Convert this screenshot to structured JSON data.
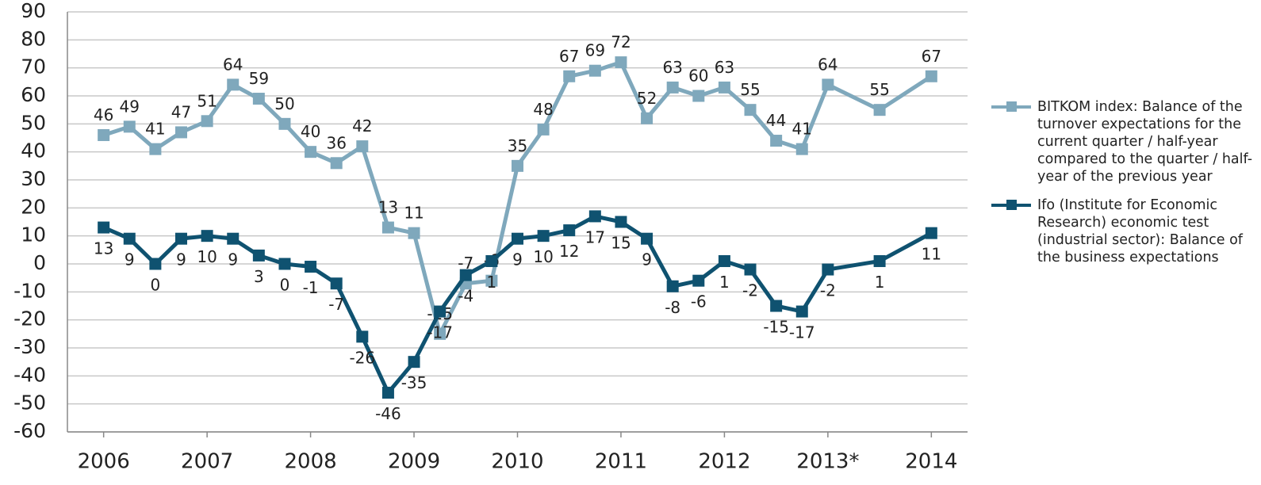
{
  "chart_data": {
    "type": "line",
    "x": [
      2006,
      2006.25,
      2006.5,
      2006.75,
      2007,
      2007.25,
      2007.5,
      2007.75,
      2008,
      2008.25,
      2008.5,
      2008.75,
      2009,
      2009.25,
      2009.5,
      2009.75,
      2010,
      2010.25,
      2010.5,
      2010.75,
      2011,
      2011.25,
      2011.5,
      2011.75,
      2012,
      2012.25,
      2012.5,
      2012.75,
      2013,
      2013.5,
      2014
    ],
    "xlim": [
      2005.65,
      2014.35
    ],
    "xticks": [
      2006,
      2007,
      2008,
      2009,
      2010,
      2011,
      2012,
      {
        "value": 2013,
        "label": "2013*"
      },
      2014
    ],
    "ylim": [
      -60,
      90
    ],
    "yticks": [
      -60,
      -50,
      -40,
      -30,
      -20,
      -10,
      0,
      10,
      20,
      30,
      40,
      50,
      60,
      70,
      80,
      90
    ],
    "grid": true,
    "legend": "right",
    "series": [
      {
        "name": "BITKOM index: Balance of the turnover expectations for the current quarter / half-year compared to the quarter / half-year of the previous year",
        "color": "#7fa8bc",
        "values": [
          46,
          49,
          41,
          47,
          51,
          64,
          59,
          50,
          40,
          36,
          42,
          13,
          11,
          -25,
          -7,
          -6,
          35,
          48,
          67,
          69,
          72,
          52,
          63,
          60,
          63,
          55,
          44,
          41,
          64,
          55,
          67
        ]
      },
      {
        "name": "Ifo (Institute for Economic Research) economic test (industrial sector): Balance of the business expectations",
        "color": "#0f5270",
        "values": [
          13,
          9,
          0,
          9,
          10,
          9,
          3,
          0,
          -1,
          -7,
          -26,
          -46,
          -35,
          -17,
          -4,
          1,
          9,
          10,
          12,
          17,
          15,
          9,
          -8,
          -6,
          1,
          -2,
          -15,
          -17,
          -2,
          1,
          11
        ]
      }
    ]
  }
}
